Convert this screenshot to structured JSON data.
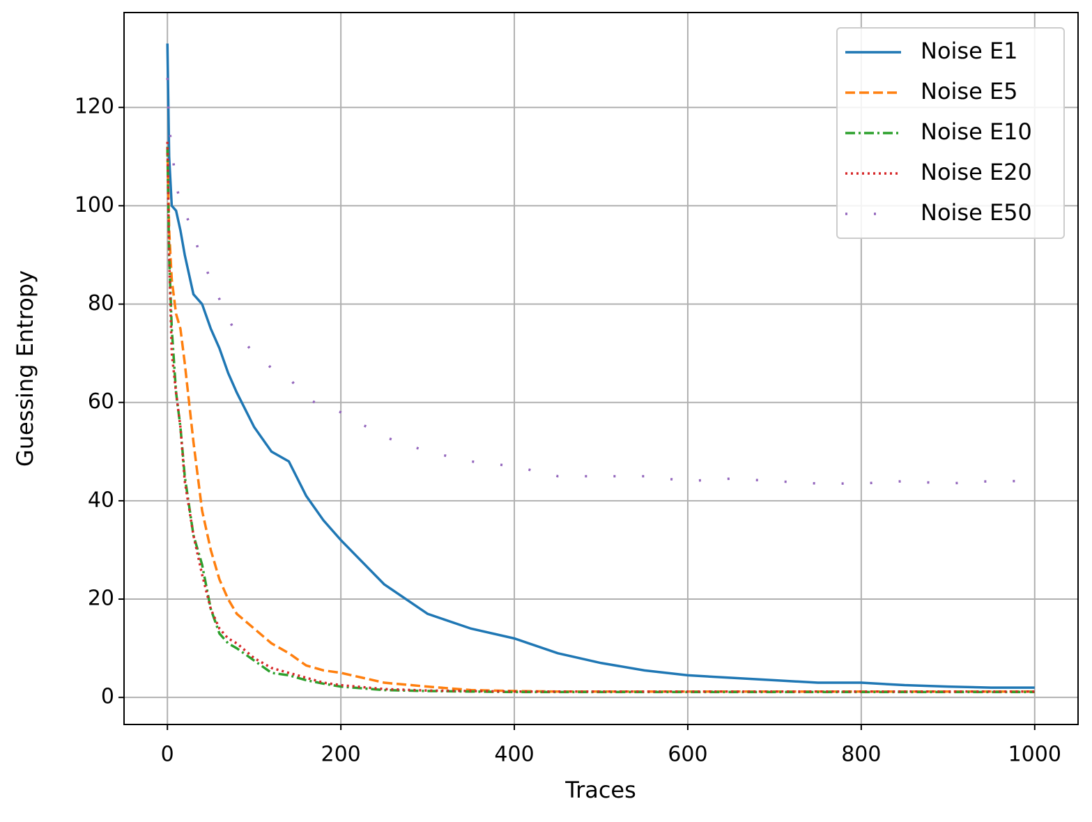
{
  "chart_data": {
    "type": "line",
    "x_label": "Traces",
    "y_label": "Guessing Entropy",
    "x": [
      0,
      2,
      5,
      10,
      15,
      20,
      30,
      40,
      50,
      60,
      70,
      80,
      100,
      120,
      140,
      160,
      180,
      200,
      250,
      300,
      350,
      400,
      450,
      500,
      550,
      600,
      650,
      700,
      750,
      800,
      850,
      900,
      950,
      1000
    ],
    "series": [
      {
        "name": "Noise E1",
        "color": "#1f77b4",
        "style": "solid",
        "values": [
          133,
          110,
          100,
          99,
          95,
          90,
          82,
          80,
          75,
          71,
          66,
          62,
          55,
          50,
          48,
          41,
          36,
          32,
          23,
          17,
          14,
          12,
          9,
          7,
          5.5,
          4.5,
          4,
          3.5,
          3,
          3,
          2.5,
          2.2,
          2,
          2
        ]
      },
      {
        "name": "Noise E5",
        "color": "#ff7f0e",
        "style": "dashed",
        "values": [
          112,
          95,
          85,
          78,
          75,
          68,
          52,
          38,
          30,
          24,
          20,
          17,
          14,
          11,
          9,
          6.5,
          5.5,
          5,
          3,
          2.2,
          1.5,
          1.3,
          1.2,
          1.2,
          1.2,
          1.2,
          1.2,
          1.2,
          1.2,
          1.2,
          1.2,
          1.2,
          1.2,
          1.2
        ]
      },
      {
        "name": "Noise E10",
        "color": "#2ca02c",
        "style": "dashdot",
        "values": [
          112,
          90,
          75,
          62,
          55,
          45,
          33,
          27,
          18,
          13,
          11,
          10,
          7.5,
          5,
          4.5,
          3.5,
          2.8,
          2.2,
          1.5,
          1.3,
          1.2,
          1.1,
          1.1,
          1.1,
          1.1,
          1.1,
          1.1,
          1.1,
          1.1,
          1.1,
          1.1,
          1.1,
          1.1,
          1.1
        ]
      },
      {
        "name": "Noise E20",
        "color": "#d62728",
        "style": "dotted",
        "values": [
          113,
          90,
          70,
          62,
          55,
          44,
          33,
          25,
          18,
          14,
          12,
          11,
          8,
          6,
          5,
          4,
          3,
          2.5,
          1.7,
          1.4,
          1.3,
          1.2,
          1.2,
          1.2,
          1.2,
          1.2,
          1.2,
          1.2,
          1.2,
          1.2,
          1.2,
          1.2,
          1.2,
          1.2
        ]
      },
      {
        "name": "Noise E50",
        "color": "#9467bd",
        "style": "loosely-dotted",
        "values": [
          126,
          116,
          112,
          104,
          101,
          99,
          94,
          89,
          85,
          81,
          77,
          74,
          70,
          67,
          65,
          61,
          59,
          58,
          53,
          50,
          48,
          47,
          45,
          45,
          45,
          44,
          44.5,
          44,
          43.5,
          43.5,
          44,
          43.5,
          44,
          44
        ]
      }
    ],
    "xlim": [
      -50,
      1050
    ],
    "ylim": [
      -5.5,
      139.3
    ],
    "xticks": [
      0,
      200,
      400,
      600,
      800,
      1000
    ],
    "yticks": [
      0,
      20,
      40,
      60,
      80,
      100,
      120
    ],
    "grid": true,
    "legend": "upper right"
  }
}
